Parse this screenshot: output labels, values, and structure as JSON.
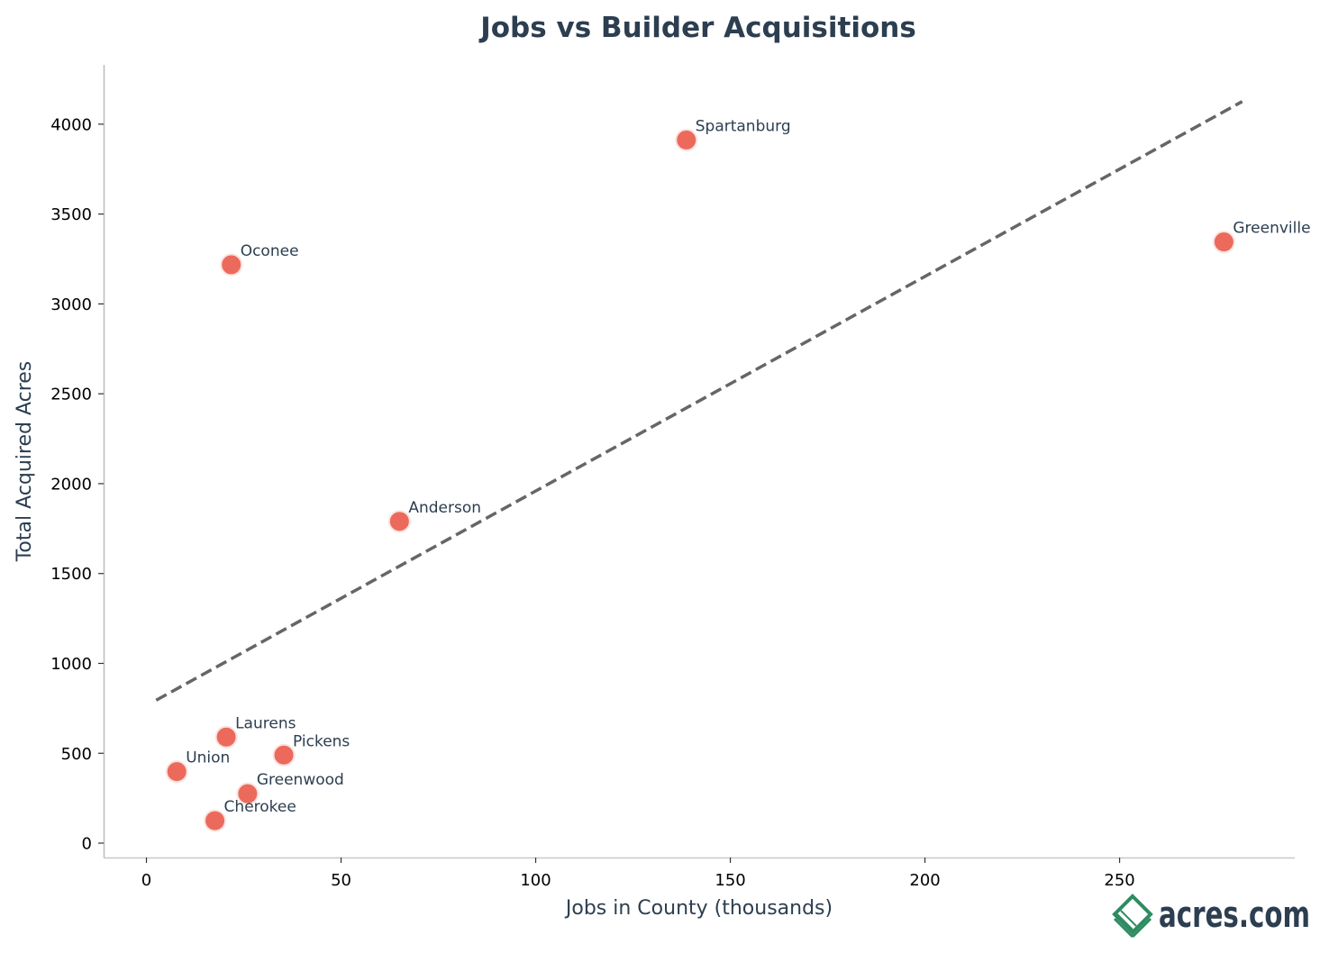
{
  "chart_data": {
    "type": "scatter",
    "title": "Jobs vs Builder Acquisitions",
    "xlabel": "Jobs in County (thousands)",
    "ylabel": "Total Acquired Acres",
    "xlim": [
      -11,
      295
    ],
    "ylim": [
      -80,
      4330
    ],
    "xticks": [
      0,
      50,
      100,
      150,
      200,
      250
    ],
    "yticks": [
      0,
      500,
      1000,
      1500,
      2000,
      2500,
      3000,
      3500,
      4000
    ],
    "grid": false,
    "points": [
      {
        "label": "Spartanburg",
        "x": 138.7,
        "y": 3912
      },
      {
        "label": "Greenville",
        "x": 276.8,
        "y": 3345
      },
      {
        "label": "Oconee",
        "x": 21.8,
        "y": 3218
      },
      {
        "label": "Anderson",
        "x": 65.0,
        "y": 1790
      },
      {
        "label": "Laurens",
        "x": 20.5,
        "y": 590
      },
      {
        "label": "Pickens",
        "x": 35.3,
        "y": 490
      },
      {
        "label": "Union",
        "x": 7.8,
        "y": 398
      },
      {
        "label": "Greenwood",
        "x": 26.0,
        "y": 275
      },
      {
        "label": "Cherokee",
        "x": 17.6,
        "y": 125
      }
    ],
    "trendline": {
      "style": "dashed",
      "x": [
        2.5,
        281.5
      ],
      "y": [
        795,
        4126
      ]
    },
    "colors": {
      "point": "#ec6a5c",
      "point_edge": "#fbe3df",
      "trendline": "#666666",
      "text": "#2c3e50",
      "spine": "#c8c8c8",
      "axis_left": "#bbbbbb"
    }
  },
  "logo": {
    "text": "acres.com",
    "color": "#2e8b62"
  }
}
